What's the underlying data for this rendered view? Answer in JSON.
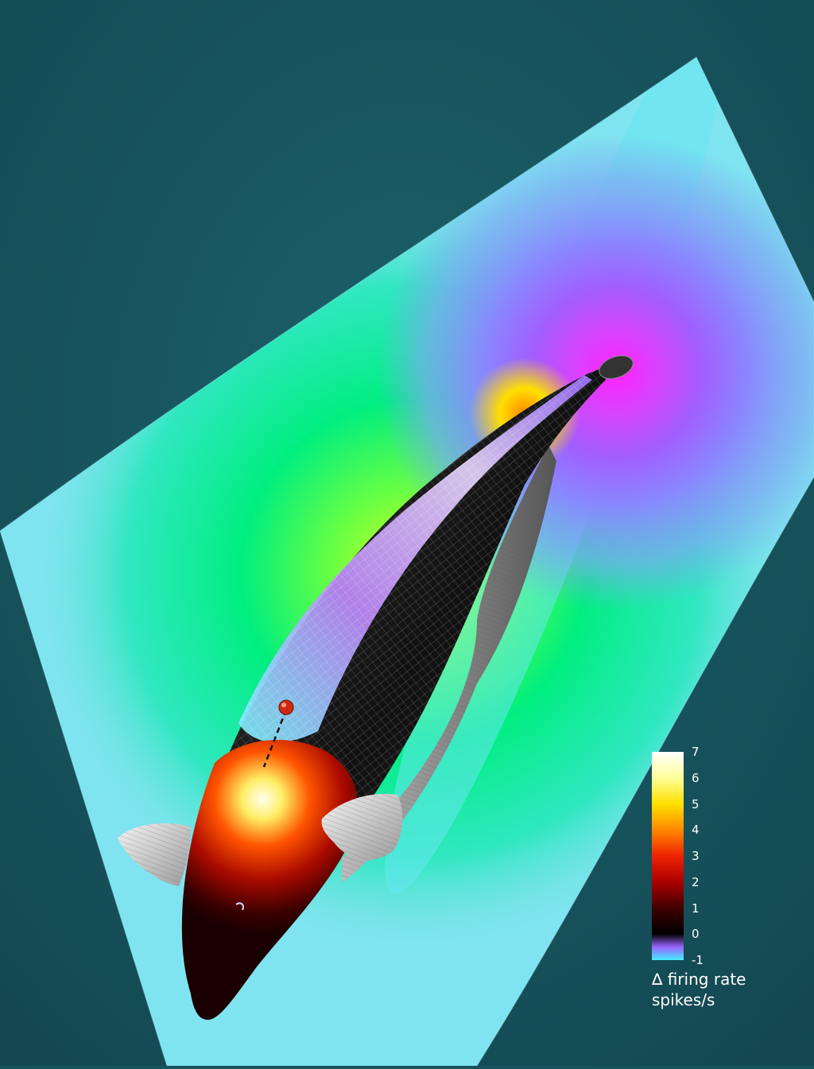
{
  "colorbar": {
    "ticks": [
      "7",
      "6",
      "5",
      "4",
      "3",
      "2",
      "1",
      "0",
      "-1"
    ],
    "label_line1": "∆ firing rate",
    "label_line2": "spikes/s",
    "stops": [
      {
        "value": 7,
        "color": "#ffffff"
      },
      {
        "value": 6,
        "color": "#ffff99"
      },
      {
        "value": 5,
        "color": "#ffe000"
      },
      {
        "value": 4,
        "color": "#ff8800"
      },
      {
        "value": 3,
        "color": "#ee2200"
      },
      {
        "value": 2,
        "color": "#aa0000"
      },
      {
        "value": 1,
        "color": "#400000"
      },
      {
        "value": 0,
        "color": "#000000"
      },
      {
        "value": -0.5,
        "color": "#9a66ff"
      },
      {
        "value": -1,
        "color": "#44eeff"
      }
    ]
  },
  "colors": {
    "background": "#17535b",
    "field_positive": "#00ee80",
    "field_negative": "#ff22ff",
    "field_neutral": "#88d8ff",
    "fish_body": "#111111",
    "fish_head_hotspot": "#ff3300",
    "probe_sphere": "#cc2a10"
  }
}
